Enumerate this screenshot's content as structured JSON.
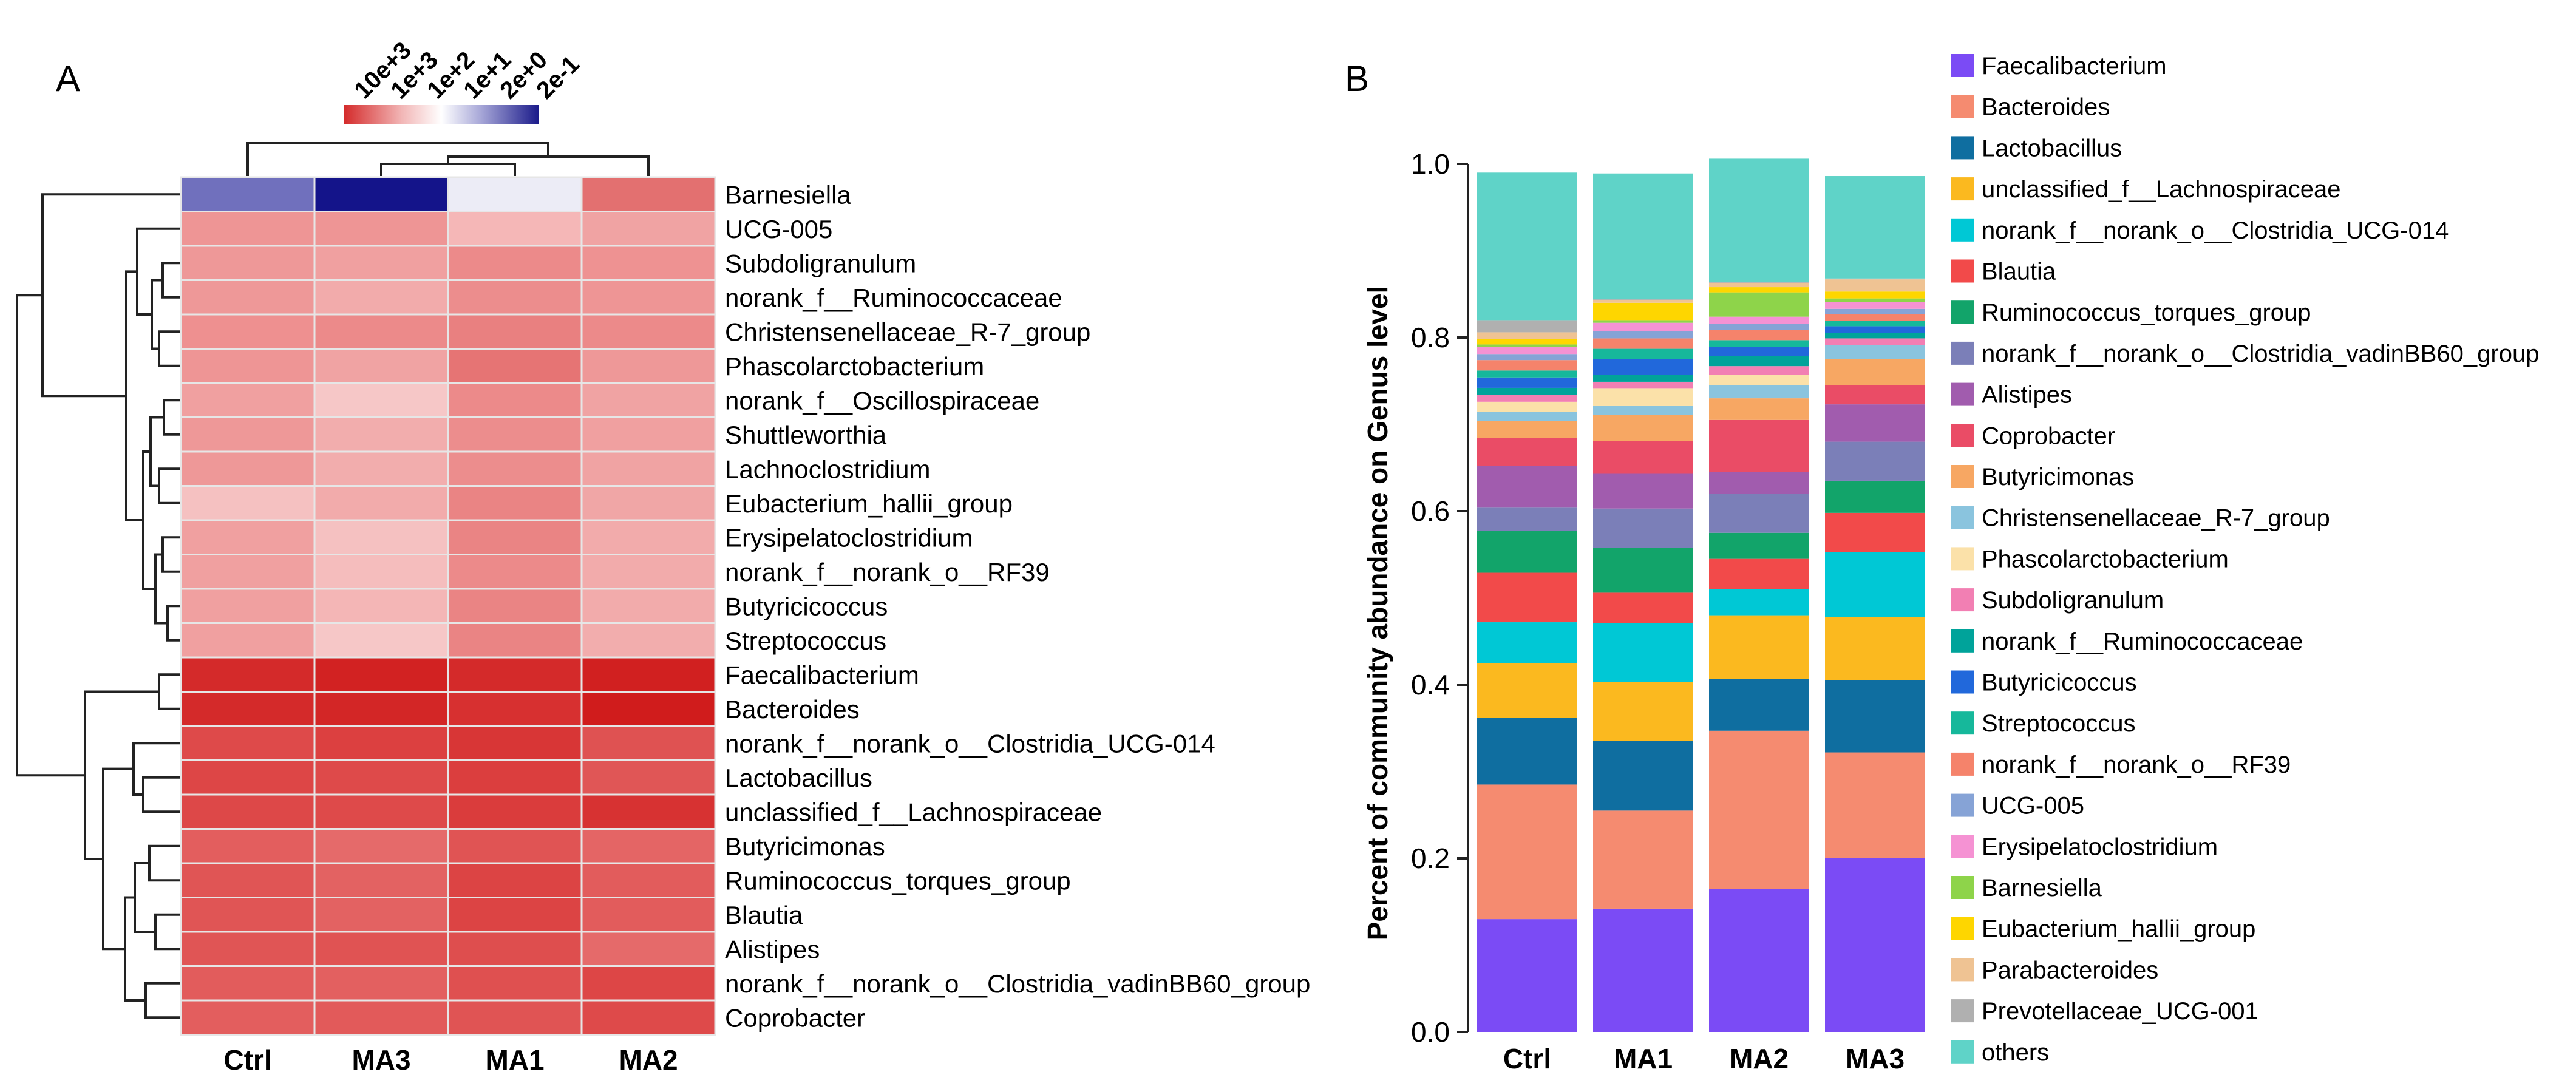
{
  "panel_a": {
    "label": "A",
    "legend": {
      "ticks": [
        "10e+3",
        "1e+3",
        "1e+2",
        "1e+1",
        "2e+0",
        "2e-1"
      ],
      "colors": [
        "#d42a2a",
        "#f2b7b7",
        "#ffffff",
        "#a8a8d8",
        "#1a1a8a"
      ]
    }
  },
  "panel_b": {
    "label": "B"
  },
  "chart_data": [
    {
      "type": "heatmap",
      "title": "",
      "columns": [
        "Ctrl",
        "MA3",
        "MA1",
        "MA2"
      ],
      "rows": [
        "Barnesiella",
        "UCG-005",
        "Subdoligranulum",
        "norank_f__Ruminococcaceae",
        "Christensenellaceae_R-7_group",
        "Phascolarctobacterium",
        "norank_f__Oscillospiraceae",
        "Shuttleworthia",
        "Lachnoclostridium",
        "Eubacterium_hallii_group",
        "Erysipelatoclostridium",
        "norank_f__norank_o__RF39",
        "Butyricicoccus",
        "Streptococcus",
        "Faecalibacterium",
        "Bacteroides",
        "norank_f__norank_o__Clostridia_UCG-014",
        "Lactobacillus",
        "unclassified_f__Lachnospiraceae",
        "Butyricimonas",
        "Ruminococcus_torques_group",
        "Blautia",
        "Alistipes",
        "norank_f__norank_o__Clostridia_vadinBB60_group",
        "Coprobacter"
      ],
      "cell_colors": [
        [
          "#7070bd",
          "#14148a",
          "#ececf6",
          "#e37070"
        ],
        [
          "#ee9595",
          "#ee9595",
          "#f5b7b7",
          "#f0a3a3"
        ],
        [
          "#ee9898",
          "#f0a0a0",
          "#ec8a8a",
          "#ee9292"
        ],
        [
          "#ee9898",
          "#f2abab",
          "#ec8d8d",
          "#ee9595"
        ],
        [
          "#ee9090",
          "#ec8a8a",
          "#e98080",
          "#ec8a8a"
        ],
        [
          "#ee9595",
          "#f0a3a3",
          "#e67474",
          "#ee9898"
        ],
        [
          "#f0a0a0",
          "#f6c7c7",
          "#ec8a8a",
          "#f0a3a3"
        ],
        [
          "#ee9898",
          "#f2adad",
          "#ec8d8d",
          "#f0a0a0"
        ],
        [
          "#ee9898",
          "#f2adad",
          "#ec8d8d",
          "#f0a3a3"
        ],
        [
          "#f5c1c1",
          "#f2abab",
          "#ea8484",
          "#f0a6a6"
        ],
        [
          "#f0a0a0",
          "#f5c1c1",
          "#ea8484",
          "#f2abab"
        ],
        [
          "#f0a0a0",
          "#f5bdbd",
          "#ec8a8a",
          "#f2abab"
        ],
        [
          "#f0a0a0",
          "#f4b6b6",
          "#ea8484",
          "#f2abab"
        ],
        [
          "#f0a0a0",
          "#f6c7c7",
          "#ea8484",
          "#f2adad"
        ],
        [
          "#d42a2a",
          "#d22222",
          "#d42a2a",
          "#d12020"
        ],
        [
          "#d42a2a",
          "#d32626",
          "#d73030",
          "#d01c1c"
        ],
        [
          "#de4a4a",
          "#dc4040",
          "#d83636",
          "#df5252"
        ],
        [
          "#dd4646",
          "#de4a4a",
          "#db3e3e",
          "#e05656"
        ],
        [
          "#dd4848",
          "#de4a4a",
          "#da3c3c",
          "#d73232"
        ],
        [
          "#e35e5e",
          "#e56a6a",
          "#e05454",
          "#e46565"
        ],
        [
          "#e05555",
          "#e36262",
          "#dc4444",
          "#e25c5c"
        ],
        [
          "#e05555",
          "#e36262",
          "#dc4444",
          "#e25c5c"
        ],
        [
          "#e05555",
          "#e05353",
          "#de4e4e",
          "#e56a6a"
        ],
        [
          "#e25c5c",
          "#e36060",
          "#df5050",
          "#dd4646"
        ],
        [
          "#e35e5e",
          "#e25a5a",
          "#e05454",
          "#de4a4a"
        ]
      ]
    },
    {
      "type": "bar",
      "stacked": true,
      "title": "",
      "xlabel": "",
      "ylabel": "Percent of community abundance on Genus level",
      "categories": [
        "Ctrl",
        "MA1",
        "MA2",
        "MA3"
      ],
      "ylim": [
        0,
        1.0
      ],
      "yticks": [
        "0.0",
        "0.2",
        "0.4",
        "0.6",
        "0.8",
        "1.0"
      ],
      "ytick_values": [
        0,
        0.2,
        0.4,
        0.6,
        0.8,
        1.0
      ],
      "series": [
        {
          "name": "Faecalibacterium",
          "color": "#7b4bf5",
          "values": [
            0.13,
            0.142,
            0.165,
            0.2
          ]
        },
        {
          "name": "Bacteroides",
          "color": "#f58b70",
          "values": [
            0.155,
            0.113,
            0.182,
            0.122
          ]
        },
        {
          "name": "Lactobacillus",
          "color": "#0f6ea0",
          "values": [
            0.077,
            0.08,
            0.06,
            0.083
          ]
        },
        {
          "name": "unclassified_f__Lachnospiraceae",
          "color": "#fbb91f",
          "values": [
            0.063,
            0.068,
            0.073,
            0.073
          ]
        },
        {
          "name": "norank_f__norank_o__Clostridia_UCG-014",
          "color": "#00c8d5",
          "values": [
            0.047,
            0.068,
            0.03,
            0.075
          ]
        },
        {
          "name": "Blautia",
          "color": "#f24a4a",
          "values": [
            0.057,
            0.035,
            0.035,
            0.045
          ]
        },
        {
          "name": "Ruminococcus_torques_group",
          "color": "#12a46a",
          "values": [
            0.048,
            0.052,
            0.03,
            0.037
          ]
        },
        {
          "name": "norank_f__norank_o__Clostridia_vadinBB60_group",
          "color": "#7b7fb8",
          "values": [
            0.027,
            0.045,
            0.045,
            0.045
          ]
        },
        {
          "name": "Alistipes",
          "color": "#a15cae",
          "values": [
            0.048,
            0.04,
            0.025,
            0.043
          ]
        },
        {
          "name": "Coprobacter",
          "color": "#ea4c66",
          "values": [
            0.032,
            0.038,
            0.06,
            0.022
          ]
        },
        {
          "name": "Butyricimonas",
          "color": "#f7a763",
          "values": [
            0.02,
            0.03,
            0.025,
            0.03
          ]
        },
        {
          "name": "Christensenellaceae_R-7_group",
          "color": "#8ac4de",
          "values": [
            0.01,
            0.01,
            0.015,
            0.016
          ]
        },
        {
          "name": "Phascolarctobacterium",
          "color": "#fbe1a9",
          "values": [
            0.012,
            0.02,
            0.012,
            0.0
          ]
        },
        {
          "name": "Subdoligranulum",
          "color": "#f27fb3",
          "values": [
            0.008,
            0.008,
            0.01,
            0.008
          ]
        },
        {
          "name": "norank_f__Ruminococcaceae",
          "color": "#00a39a",
          "values": [
            0.008,
            0.008,
            0.012,
            0.006
          ]
        },
        {
          "name": "Butyricicoccus",
          "color": "#2168db",
          "values": [
            0.012,
            0.018,
            0.01,
            0.008
          ]
        },
        {
          "name": "Streptococcus",
          "color": "#16b89b",
          "values": [
            0.008,
            0.012,
            0.008,
            0.006
          ]
        },
        {
          "name": "norank_f__norank_o__RF39",
          "color": "#f5836b",
          "values": [
            0.012,
            0.012,
            0.012,
            0.008
          ]
        },
        {
          "name": "UCG-005",
          "color": "#86a3d6",
          "values": [
            0.007,
            0.008,
            0.007,
            0.006
          ]
        },
        {
          "name": "Erysipelatoclostridium",
          "color": "#f592d3",
          "values": [
            0.008,
            0.01,
            0.008,
            0.008
          ]
        },
        {
          "name": "Barnesiella",
          "color": "#8ed44a",
          "values": [
            0.003,
            0.003,
            0.028,
            0.004
          ]
        },
        {
          "name": "Eubacterium_hallii_group",
          "color": "#fed600",
          "values": [
            0.006,
            0.02,
            0.006,
            0.008
          ]
        },
        {
          "name": "Parabacteroides",
          "color": "#efc393",
          "values": [
            0.008,
            0.003,
            0.005,
            0.014
          ]
        },
        {
          "name": "Prevotellaceae_UCG-001",
          "color": "#b0b0b0",
          "values": [
            0.014,
            0.001,
            0.001,
            0.001
          ]
        },
        {
          "name": "others",
          "color": "#5fd3c8",
          "values": [
            0.17,
            0.145,
            0.142,
            0.118
          ]
        }
      ]
    }
  ]
}
